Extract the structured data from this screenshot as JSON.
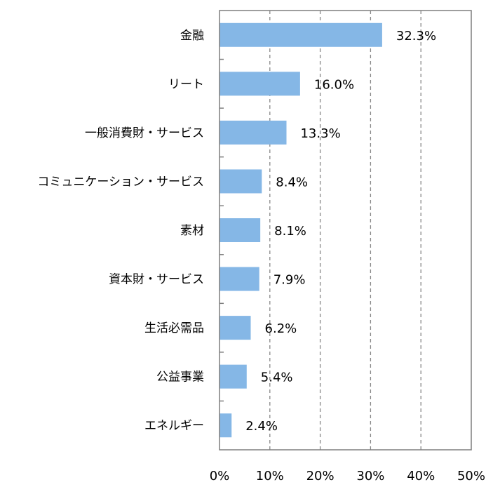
{
  "chart_data": {
    "type": "bar",
    "orientation": "horizontal",
    "categories": [
      "金融",
      "リート",
      "一般消費財・サービス",
      "コミュニケーション・サービス",
      "素材",
      "資本財・サービス",
      "生活必需品",
      "公益事業",
      "エネルギー"
    ],
    "values": [
      32.3,
      16.0,
      13.3,
      8.4,
      8.1,
      7.9,
      6.2,
      5.4,
      2.4
    ],
    "value_labels": [
      "32.3%",
      "16.0%",
      "13.3%",
      "8.4%",
      "8.1%",
      "7.9%",
      "6.2%",
      "5.4%",
      "2.4%"
    ],
    "xlim": [
      0,
      50
    ],
    "xticks": [
      0,
      10,
      20,
      30,
      40,
      50
    ],
    "xtick_labels": [
      "0%",
      "10%",
      "20%",
      "30%",
      "40%",
      "50%"
    ],
    "grid": "vertical dashed",
    "bar_color": "#85b7e6",
    "grid_color": "#888888",
    "frame_color": "#7f7f7f"
  }
}
